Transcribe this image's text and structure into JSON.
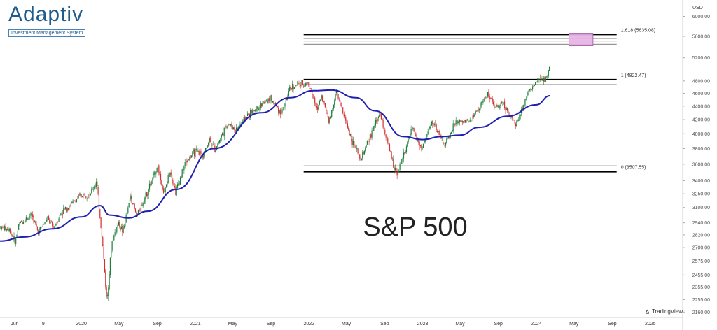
{
  "logo": {
    "name": "Adaptiv",
    "tagline": "Investment Management System"
  },
  "currency": "USD",
  "watermark": "TradingView",
  "chart_data": {
    "type": "candlestick",
    "title": "S&P 500",
    "ylabel": "USD",
    "yscale": "log",
    "ylim": [
      2120,
      6350
    ],
    "y_ticks": [
      6000,
      5600,
      5200,
      4800,
      4600,
      4400,
      4200,
      4000,
      3800,
      3600,
      3400,
      3250,
      3100,
      2940,
      2820,
      2700,
      2575,
      2455,
      2355,
      2255,
      2160
    ],
    "y_tick_labels": [
      "6000.00",
      "5600.00",
      "5200.00",
      "4800.00",
      "4600.00",
      "4400.00",
      "4200.00",
      "4000.00",
      "3800.00",
      "3600.00",
      "3400.00",
      "3250.00",
      "3100.00",
      "2940.00",
      "2820.00",
      "2700.00",
      "2575.00",
      "2455.00",
      "2355.00",
      "2255.00",
      "2160.00"
    ],
    "x_ticks": [
      {
        "date": "2019-06-01",
        "label": "Jun"
      },
      {
        "date": "2019-09-01",
        "label": "9"
      },
      {
        "date": "2020-01-01",
        "label": "2020"
      },
      {
        "date": "2020-05-01",
        "label": "May"
      },
      {
        "date": "2020-09-01",
        "label": "Sep"
      },
      {
        "date": "2021-01-01",
        "label": "2021"
      },
      {
        "date": "2021-05-01",
        "label": "May"
      },
      {
        "date": "2021-09-01",
        "label": "Sep"
      },
      {
        "date": "2022-01-01",
        "label": "2022"
      },
      {
        "date": "2022-05-01",
        "label": "May"
      },
      {
        "date": "2022-09-01",
        "label": "Sep"
      },
      {
        "date": "2023-01-01",
        "label": "2023"
      },
      {
        "date": "2023-05-01",
        "label": "May"
      },
      {
        "date": "2023-09-01",
        "label": "Sep"
      },
      {
        "date": "2024-01-01",
        "label": "2024"
      },
      {
        "date": "2024-05-01",
        "label": "May"
      },
      {
        "date": "2024-09-01",
        "label": "Sep"
      },
      {
        "date": "2025-01-01",
        "label": "2025"
      }
    ],
    "x_range": [
      "2019-04-15",
      "2025-04-15"
    ],
    "price_series": {
      "name": "S&P 500",
      "dates": [
        "2019-04-15",
        "2019-05-15",
        "2019-06-03",
        "2019-06-15",
        "2019-07-26",
        "2019-08-15",
        "2019-09-15",
        "2019-10-03",
        "2019-10-30",
        "2019-11-30",
        "2019-12-31",
        "2020-01-31",
        "2020-02-19",
        "2020-03-09",
        "2020-03-23",
        "2020-04-08",
        "2020-04-29",
        "2020-05-14",
        "2020-06-08",
        "2020-06-26",
        "2020-07-31",
        "2020-09-02",
        "2020-09-23",
        "2020-10-12",
        "2020-10-30",
        "2020-11-30",
        "2020-12-31",
        "2021-01-29",
        "2021-02-15",
        "2021-03-04",
        "2021-04-15",
        "2021-05-12",
        "2021-06-15",
        "2021-07-15",
        "2021-08-31",
        "2021-10-04",
        "2021-11-05",
        "2021-12-31",
        "2022-01-27",
        "2022-02-09",
        "2022-03-08",
        "2022-03-29",
        "2022-05-20",
        "2022-06-16",
        "2022-08-16",
        "2022-09-30",
        "2022-10-12",
        "2022-11-30",
        "2022-12-28",
        "2023-02-02",
        "2023-03-13",
        "2023-04-15",
        "2023-05-31",
        "2023-07-31",
        "2023-08-18",
        "2023-09-15",
        "2023-10-27",
        "2023-11-30",
        "2023-12-29",
        "2024-01-31",
        "2024-02-14"
      ],
      "close": [
        2900,
        2870,
        2750,
        2930,
        3025,
        2850,
        2980,
        2890,
        3050,
        3140,
        3230,
        3260,
        3390,
        2750,
        2237,
        2750,
        2940,
        2850,
        3230,
        3010,
        3270,
        3580,
        3240,
        3530,
        3270,
        3620,
        3760,
        3720,
        3930,
        3780,
        4150,
        4050,
        4250,
        4360,
        4520,
        4300,
        4700,
        4770,
        4330,
        4580,
        4170,
        4630,
        3900,
        3650,
        4300,
        3580,
        3490,
        4080,
        3800,
        4180,
        3850,
        4150,
        4180,
        4590,
        4370,
        4450,
        4120,
        4560,
        4770,
        4850,
        5030
      ]
    },
    "moving_average": {
      "name": "",
      "dates": [
        "2019-04-15",
        "2019-07-01",
        "2019-10-01",
        "2020-01-01",
        "2020-03-01",
        "2020-04-01",
        "2020-06-01",
        "2020-08-01",
        "2020-11-01",
        "2021-03-01",
        "2021-08-01",
        "2021-11-01",
        "2022-01-15",
        "2022-03-15",
        "2022-06-01",
        "2022-08-01",
        "2022-11-01",
        "2023-01-01",
        "2023-03-01",
        "2023-05-01",
        "2023-07-01",
        "2023-10-01",
        "2024-01-01",
        "2024-02-14"
      ],
      "values": [
        2760,
        2800,
        2880,
        3000,
        3120,
        3020,
        2990,
        3060,
        3300,
        3800,
        4300,
        4530,
        4640,
        4650,
        4530,
        4330,
        3960,
        3920,
        3960,
        3980,
        4090,
        4250,
        4420,
        4560
      ]
    },
    "fibonacci": {
      "start_date": "2021-12-15",
      "end_date": "2024-09-15",
      "levels": [
        {
          "ratio": "1.618",
          "label": "1.618 (5635.08)",
          "price": 5635.08
        },
        {
          "ratio": "1",
          "label": "1 (4822.47)",
          "price": 4822.47
        },
        {
          "ratio": "0",
          "label": "0 (3507.55)",
          "price": 3507.55
        }
      ],
      "inner_lines": [
        5560,
        5510,
        5450,
        4740,
        3580
      ],
      "target_box": {
        "x_start": "2024-04-15",
        "x_end": "2024-07-01",
        "y_low": 5420,
        "y_high": 5660,
        "color": "#e6b3e6"
      }
    },
    "colors": {
      "up": "#1a7f37",
      "down": "#d32f2f",
      "moving_average": "#1f1fb0",
      "level_line": "#000000"
    }
  }
}
